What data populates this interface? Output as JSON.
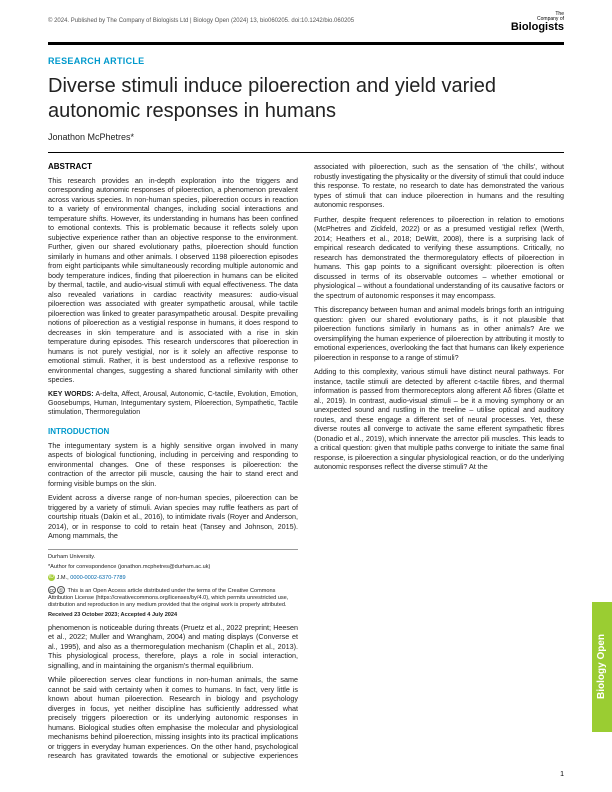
{
  "header": {
    "copyright": "© 2024. Published by The Company of Biologists Ltd | Biology Open (2024) 13, bio060205. doi:10.1242/bio.060205",
    "publisher_small1": "The",
    "publisher_small2": "Company of",
    "publisher_big": "Biologists"
  },
  "article": {
    "section": "RESEARCH ARTICLE",
    "title": "Diverse stimuli induce piloerection and yield varied autonomic responses in humans",
    "author": "Jonathon McPhetres*"
  },
  "abstract": {
    "heading": "ABSTRACT",
    "body": "This research provides an in-depth exploration into the triggers and corresponding autonomic responses of piloerection, a phenomenon prevalent across various species. In non-human species, piloerection occurs in reaction to a variety of environmental changes, including social interactions and temperature shifts. However, its understanding in humans has been confined to emotional contexts. This is problematic because it reflects solely upon subjective experience rather than an objective response to the environment. Further, given our shared evolutionary paths, piloerection should function similarly in humans and other animals. I observed 1198 piloerection episodes from eight participants while simultaneously recording multiple autonomic and body temperature indices, finding that piloerection in humans can be elicited by thermal, tactile, and audio-visual stimuli with equal effectiveness. The data also revealed variations in cardiac reactivity measures: audio-visual piloerection was associated with greater sympathetic arousal, while tactile piloerection was linked to greater parasympathetic arousal. Despite prevailing notions of piloerection as a vestigial response in humans, it does respond to decreases in skin temperature and is associated with a rise in skin temperature during episodes. This research underscores that piloerection in humans is not purely vestigial, nor is it solely an affective response to emotional stimuli. Rather, it is best understood as a reflexive response to environmental changes, suggesting a shared functional similarity with other species.",
    "keywords_label": "KEY WORDS:",
    "keywords": "A-delta, Affect, Arousal, Autonomic, C-tactile, Evolution, Emotion, Goosebumps, Human, Integumentary system, Piloerection, Sympathetic, Tactile stimulation, Thermoregulation"
  },
  "intro": {
    "heading": "INTRODUCTION",
    "p1": "The integumentary system is a highly sensitive organ involved in many aspects of biological functioning, including in perceiving and responding to environmental changes. One of these responses is piloerection: the contraction of the arrector pili muscle, causing the hair to stand erect and forming visible bumps on the skin.",
    "p2": "Evident across a diverse range of non-human species, piloerection can be triggered by a variety of stimuli. Avian species may ruffle feathers as part of courtship rituals (Dakin et al., 2016), to intimidate rivals (Royer and Anderson, 2014), or in response to cold to retain heat (Tansey and Johnson, 2015). Among mammals, the"
  },
  "footer": {
    "affil": "Durham University.",
    "corr": "*Author for correspondence (jonathon.mcphetres@durham.ac.uk)",
    "orcid_label": "J.M.,",
    "orcid": "0000-0002-6370-7789",
    "license": "This is an Open Access article distributed under the terms of the Creative Commons Attribution License (https://creativecommons.org/licenses/by/4.0), which permits unrestricted use, distribution and reproduction in any medium provided that the original work is properly attributed.",
    "dates": "Received 23 October 2023; Accepted 4 July 2024"
  },
  "col2": {
    "p1": "phenomenon is noticeable during threats (Pruetz et al., 2022 preprint; Heesen et al., 2022; Muller and Wrangham, 2004) and mating displays (Converse et al., 1995), and also as a thermoregulation mechanism (Chaplin et al., 2013). This physiological process, therefore, plays a role in social interaction, signalling, and in maintaining the organism's thermal equilibrium.",
    "p2": "While piloerection serves clear functions in non-human animals, the same cannot be said with certainty when it comes to humans. In fact, very little is known about human piloerection. Research in biology and psychology diverges in focus, yet neither discipline has sufficiently addressed what precisely triggers piloerection or its underlying autonomic responses in humans. Biological studies often emphasise the molecular and physiological mechanisms behind piloerection, missing insights into its practical implications or triggers in everyday human experiences. On the other hand, psychological research has gravitated towards the emotional or subjective experiences associated with piloerection, such as the sensation of 'the chills', without robustly investigating the physicality or the diversity of stimuli that could induce this response. To restate, no research to date has demonstrated the various types of stimuli that can induce piloerection in humans and the resulting autonomic responses.",
    "p3": "Further, despite frequent references to piloerection in relation to emotions (McPhetres and Zickfeld, 2022) or as a presumed vestigial reflex (Werth, 2014; Heathers et al., 2018; DeWitt, 2008), there is a surprising lack of empirical research dedicated to verifying these assumptions. Critically, no research has demonstrated the thermoregulatory effects of piloerection in humans. This gap points to a significant oversight: piloerection is often discussed in terms of its observable outcomes – whether emotional or physiological – without a foundational understanding of its causative factors or the spectrum of autonomic responses it may encompass.",
    "p4": "This discrepancy between human and animal models brings forth an intriguing question: given our shared evolutionary paths, is it not plausible that piloerection functions similarly in humans as in other animals? Are we oversimplifying the human experience of piloerection by attributing it mostly to emotional experiences, overlooking the fact that humans can likely experience piloerection in response to a range of stimuli?",
    "p5": "Adding to this complexity, various stimuli have distinct neural pathways. For instance, tactile stimuli are detected by afferent c-tactile fibres, and thermal information is passed from thermoreceptors along afferent Aδ fibres (Glatte et al., 2019). In contrast, audio-visual stimuli – be it a moving symphony or an unexpected sound and rustling in the treeline – utilise optical and auditory routes, and these engage a different set of neural processes. Yet, these diverse routes all converge to activate the same efferent sympathetic fibres (Donadio et al., 2019), which innervate the arrector pili muscles. This leads to a critical question: given that multiple paths converge to initiate the same final response, is piloerection a singular physiological reaction, or do the underlying autonomic responses reflect the diverse stimuli? At the"
  },
  "sidebar": {
    "label": "Biology Open"
  },
  "page": {
    "num": "1"
  }
}
